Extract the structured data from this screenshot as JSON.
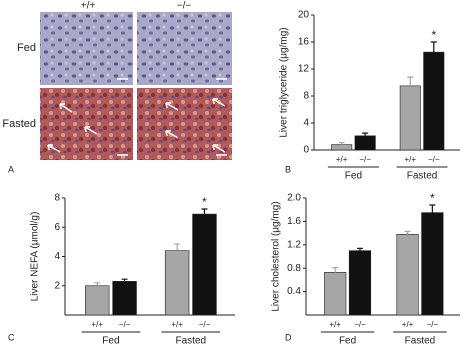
{
  "panel_a": {
    "letter": "A",
    "columns": [
      "+/+",
      "−/−"
    ],
    "rows": [
      "Fed",
      "Fasted"
    ]
  },
  "chart_data": [
    {
      "type": "bar",
      "letter": "B",
      "ylabel": "Liver triglyceride (μg/mg)",
      "categories": [
        "Fed",
        "Fasted"
      ],
      "series": [
        {
          "name": "+/+",
          "color": "#a6a6a6",
          "values": [
            0.8,
            9.5
          ],
          "errors": [
            0.3,
            1.3
          ]
        },
        {
          "name": "−/−",
          "color": "#111111",
          "values": [
            2.1,
            14.5
          ],
          "errors": [
            0.4,
            1.5
          ]
        }
      ],
      "annotations": [
        {
          "text": "*",
          "category": "Fasted",
          "series": "−/−"
        }
      ],
      "ylim": [
        0,
        20
      ],
      "yticks": [
        0,
        4,
        8,
        12,
        16,
        20
      ]
    },
    {
      "type": "bar",
      "letter": "C",
      "ylabel": "Liver NEFA (μmol/g)",
      "categories": [
        "Fed",
        "Fasted"
      ],
      "series": [
        {
          "name": "+/+",
          "color": "#a6a6a6",
          "values": [
            2.0,
            4.4
          ],
          "errors": [
            0.2,
            0.45
          ]
        },
        {
          "name": "−/−",
          "color": "#111111",
          "values": [
            2.3,
            6.9
          ],
          "errors": [
            0.15,
            0.35
          ]
        }
      ],
      "annotations": [
        {
          "text": "*",
          "category": "Fasted",
          "series": "−/−"
        }
      ],
      "ylim": [
        0,
        8
      ],
      "yticks": [
        2,
        4,
        6,
        8
      ]
    },
    {
      "type": "bar",
      "letter": "D",
      "ylabel": "Liver cholesterol (μg/mg)",
      "categories": [
        "Fed",
        "Fasted"
      ],
      "series": [
        {
          "name": "+/+",
          "color": "#a6a6a6",
          "values": [
            0.73,
            1.38
          ],
          "errors": [
            0.08,
            0.05
          ]
        },
        {
          "name": "−/−",
          "color": "#111111",
          "values": [
            1.1,
            1.75
          ],
          "errors": [
            0.04,
            0.13
          ]
        }
      ],
      "annotations": [
        {
          "text": "*",
          "category": "Fasted",
          "series": "−/−"
        }
      ],
      "ylim": [
        0,
        2
      ],
      "yticks": [
        0.4,
        0.8,
        1.2,
        1.6,
        {
          "value": 2,
          "label": "2.0"
        }
      ]
    }
  ]
}
